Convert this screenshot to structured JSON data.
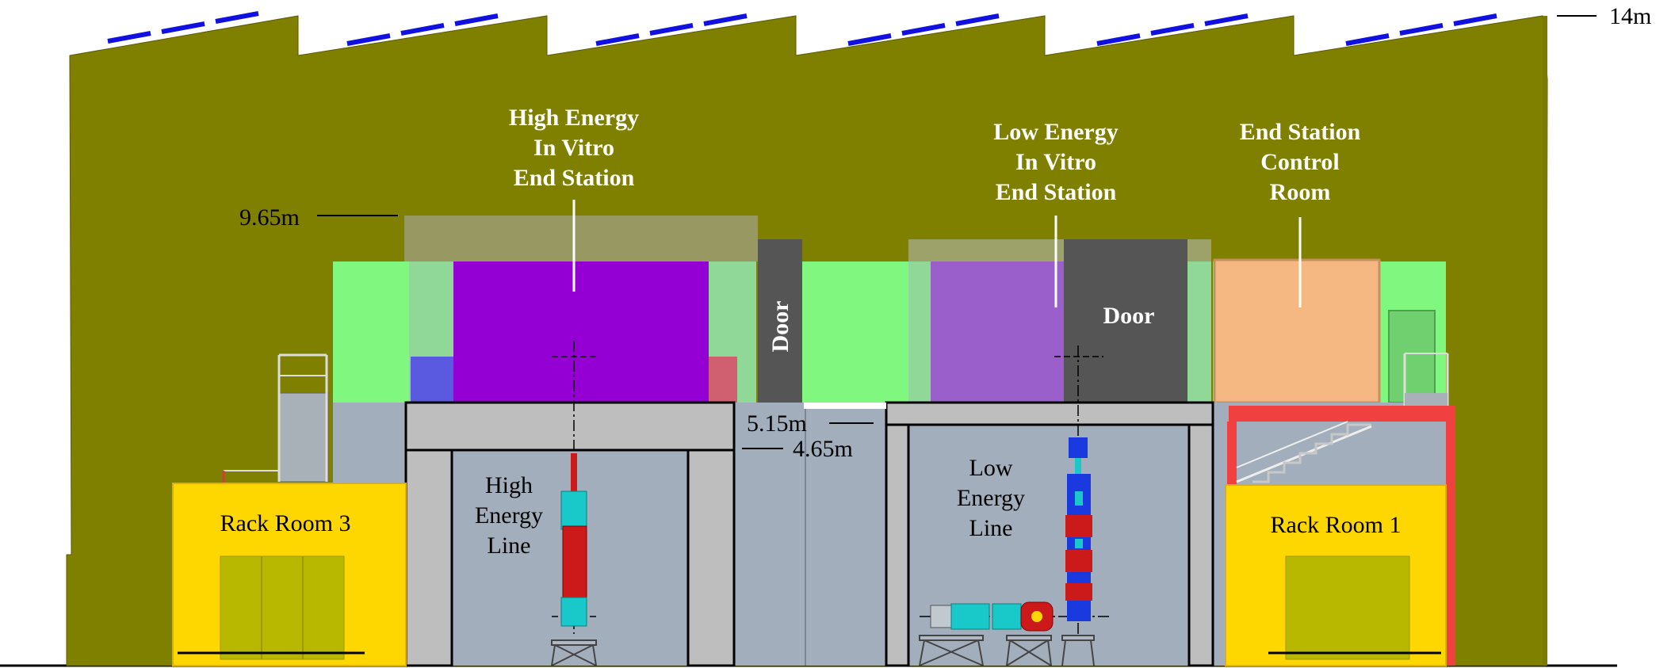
{
  "diagram": {
    "labels": {
      "high_energy_station": [
        "High Energy",
        "In Vitro",
        "End Station"
      ],
      "low_energy_station": [
        "Low Energy",
        "In Vitro",
        "End Station"
      ],
      "control_room": [
        "End Station",
        "Control",
        "Room"
      ],
      "door_vertical": "Door",
      "door_horizontal": "Door",
      "high_energy_line": [
        "High",
        "Energy",
        "Line"
      ],
      "low_energy_line": [
        "Low",
        "Energy",
        "Line"
      ],
      "rack_room_3": "Rack Room 3",
      "rack_room_1": "Rack Room 1"
    },
    "dimensions": {
      "top": "14m",
      "station_height": "9.65m",
      "upper": "5.15m",
      "lower": "4.65m"
    },
    "colors": {
      "building": "#808000",
      "sky": "#ffffff",
      "solar_panel": "#1010e0",
      "green_level": "#80f880",
      "high_energy_room": "#9400d3",
      "low_energy_room": "#9b5fcc",
      "door": "#555555",
      "control_room": "#f5b882",
      "concrete": "#bebebe",
      "beam_hall": "#a3aebc",
      "rack_room": "#ffd700",
      "stair_frame": "#f04040",
      "magnet_red": "#cc1a1a",
      "magnet_cyan": "#19c8c8"
    }
  }
}
